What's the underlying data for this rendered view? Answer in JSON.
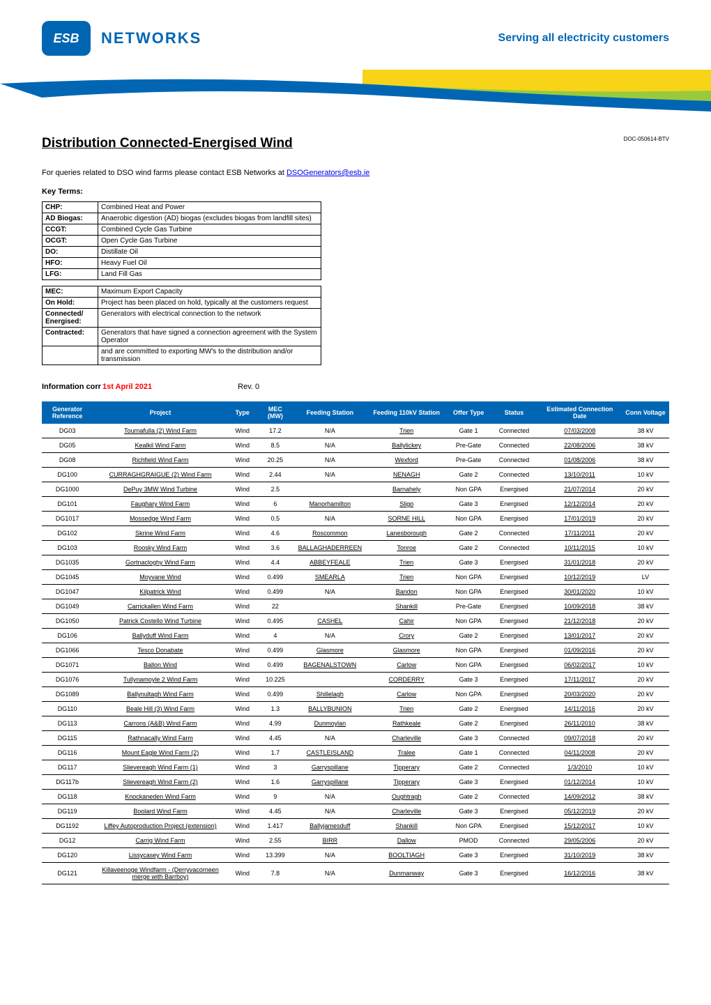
{
  "header": {
    "logo_badge_text": "ESB",
    "logo_text": "NETWORKS",
    "tagline": "Serving all electricity customers"
  },
  "swoosh": {
    "blue_color": "#0066b3",
    "yellow_color": "#f7d417",
    "green_color": "#9aca3c"
  },
  "page_title": "Distribution Connected-Energised Wind",
  "doc_ref": "DOC-050614-BTV",
  "queries_prefix": "For queries related to DSO wind farms please contact ESB Networks at ",
  "queries_email": "DSOGenerators@esb.ie",
  "key_terms_label": "Key Terms:",
  "terms_group1": [
    {
      "key": "CHP:",
      "val": "Combined Heat and Power"
    },
    {
      "key": "AD Biogas:",
      "val": "Anaerobic digestion (AD) biogas (excludes biogas from landfill sites)"
    },
    {
      "key": "CCGT:",
      "val": "Combined Cycle Gas Turbine"
    },
    {
      "key": "OCGT:",
      "val": "Open Cycle Gas Turbine"
    },
    {
      "key": "DO:",
      "val": "Distillate Oil"
    },
    {
      "key": "HFO:",
      "val": "Heavy Fuel Oil"
    },
    {
      "key": "LFG:",
      "val": "Land Fill Gas"
    }
  ],
  "terms_group2": [
    {
      "key": "MEC:",
      "val": "Maximum Export Capacity"
    },
    {
      "key": "On Hold:",
      "val": "Project has been placed on hold, typically at the customers request"
    },
    {
      "key": "Connected/ Energised:",
      "val": "Generators with electrical connection to the network"
    },
    {
      "key": "Contracted:",
      "val": "Generators that have signed a connection agreement with the System Operator"
    },
    {
      "key": "",
      "val": "and are committed to exporting MW's to the distribution and/or transmission"
    }
  ],
  "info": {
    "label": "Information corr",
    "date": "1st April 2021",
    "rev": "Rev. 0"
  },
  "columns": [
    "Generator Reference",
    "Project",
    "Type",
    "MEC (MW)",
    "Feeding Station",
    "Feeding 110kV Station",
    "Offer Type",
    "Status",
    "Estimated Connection Date",
    "Conn Voltage"
  ],
  "col_widths": [
    "70px",
    "185px",
    "40px",
    "50px",
    "100px",
    "110px",
    "60px",
    "65px",
    "115px",
    "65px"
  ],
  "rows": [
    [
      "DG03",
      "Tournafulla (2) Wind Farm",
      "Wind",
      "17.2",
      "N/A",
      "Trien",
      "Gate 1",
      "Connected",
      "07/03/2008",
      "38 kV"
    ],
    [
      "DG05",
      "Kealkil Wind Farm",
      "Wind",
      "8.5",
      "N/A",
      "Ballylickey",
      "Pre-Gate",
      "Connected",
      "22/08/2006",
      "38 kV"
    ],
    [
      "DG08",
      "Richfield Wind Farm",
      "Wind",
      "20.25",
      "N/A",
      "Wexford",
      "Pre-Gate",
      "Connected",
      "01/08/2006",
      "38 kV"
    ],
    [
      "DG100",
      "CURRAGHGRAIGUE (2) Wind Farm",
      "Wind",
      "2.44",
      "N/A",
      "NENAGH",
      "Gate 2",
      "Connected",
      "13/10/2011",
      "10 kV"
    ],
    [
      "DG1000",
      "DePuy 3MW Wind Turbine",
      "Wind",
      "2.5",
      "",
      "Barnahely",
      "Non GPA",
      "Energised",
      "21/07/2014",
      "20 kV"
    ],
    [
      "DG101",
      "Faughary Wind Farm",
      "Wind",
      "6",
      "Manorhamilton",
      "Sligo",
      "Gate 3",
      "Energised",
      "12/12/2014",
      "20 kV"
    ],
    [
      "DG1017",
      "Mossedge Wind Farm",
      "Wind",
      "0.5",
      "N/A",
      "SORNE HILL",
      "Non GPA",
      "Energised",
      "17/01/2019",
      "20 kV"
    ],
    [
      "DG102",
      "Skrine Wind Farm",
      "Wind",
      "4.6",
      "Roscommon",
      "Lanesborough",
      "Gate 2",
      "Connected",
      "17/11/2011",
      "20 kV"
    ],
    [
      "DG103",
      "Roosky Wind Farm",
      "Wind",
      "3.6",
      "BALLAGHADERREEN",
      "Tonroe",
      "Gate 2",
      "Connected",
      "10/11/2015",
      "10 kV"
    ],
    [
      "DG1035",
      "Gortnacloghy Wind Farm",
      "Wind",
      "4.4",
      "ABBEYFEALE",
      "Trien",
      "Gate 3",
      "Energised",
      "31/01/2018",
      "20 kV"
    ],
    [
      "DG1045",
      "Moyvane Wind",
      "Wind",
      "0.499",
      "SMEARLA",
      "Trien",
      "Non GPA",
      "Energised",
      "10/12/2019",
      "LV"
    ],
    [
      "DG1047",
      "Kilpatrick Wind",
      "Wind",
      "0.499",
      "N/A",
      "Bandon",
      "Non GPA",
      "Energised",
      "30/01/2020",
      "10 kV"
    ],
    [
      "DG1049",
      "Carrickallen Wind Farm",
      "Wind",
      "22",
      "",
      "Shankill",
      "Pre-Gate",
      "Energised",
      "10/09/2018",
      "38 kV"
    ],
    [
      "DG1050",
      "Patrick Costello Wind Turbine",
      "Wind",
      "0.495",
      "CASHEL",
      "Cahir",
      "Non GPA",
      "Energised",
      "21/12/2018",
      "20 kV"
    ],
    [
      "DG106",
      "Ballyduff Wind Farm",
      "Wind",
      "4",
      "N/A",
      "Crory",
      "Gate 2",
      "Energised",
      "13/01/2017",
      "20 kV"
    ],
    [
      "DG1066",
      "Tesco Donabate",
      "Wind",
      "0.499",
      "Glasmore",
      "Glasmore",
      "Non GPA",
      "Energised",
      "01/09/2016",
      "20 kV"
    ],
    [
      "DG1071",
      "Ballon Wind",
      "Wind",
      "0.499",
      "BAGENALSTOWN",
      "Carlow",
      "Non GPA",
      "Energised",
      "06/02/2017",
      "10 kV"
    ],
    [
      "DG1076",
      "Tullynamoyle 2 Wind Farm",
      "Wind",
      "10.225",
      "",
      "CORDERRY",
      "Gate 3",
      "Energised",
      "17/11/2017",
      "20 kV"
    ],
    [
      "DG1089",
      "Ballynultagh Wind Farm",
      "Wind",
      "0.499",
      "Shillelagh",
      "Carlow",
      "Non GPA",
      "Energised",
      "20/03/2020",
      "20 kV"
    ],
    [
      "DG110",
      "Beale Hill (3) Wind Farm",
      "Wind",
      "1.3",
      "BALLYBUNION",
      "Trien",
      "Gate 2",
      "Energised",
      "14/11/2016",
      "20 kV"
    ],
    [
      "DG113",
      "Carrons (A&B) Wind Farm",
      "Wind",
      "4.99",
      "Dunmoylan",
      "Rathkeale",
      "Gate 2",
      "Energised",
      "26/11/2010",
      "38 kV"
    ],
    [
      "DG115",
      "Rathnacally Wind Farm",
      "Wind",
      "4.45",
      "N/A",
      "Charleville",
      "Gate 3",
      "Connected",
      "09/07/2018",
      "20 kV"
    ],
    [
      "DG116",
      "Mount Eagle Wind Farm (2)",
      "Wind",
      "1.7",
      "CASTLEISLAND",
      "Tralee",
      "Gate 1",
      "Connected",
      "04/11/2008",
      "20 kV"
    ],
    [
      "DG117",
      "Slievereagh Wind Farm (1)",
      "Wind",
      "3",
      "Garryspillane",
      "Tipperary",
      "Gate 2",
      "Connected",
      "1/3/2010",
      "10 kV"
    ],
    [
      "DG117b",
      "Slievereagh Wind Farm (2)",
      "Wind",
      "1.6",
      "Garryspillane",
      "Tipperary",
      "Gate 3",
      "Energised",
      "01/12/2014",
      "10 kV"
    ],
    [
      "DG118",
      "Knockaneden Wind Farm",
      "Wind",
      "9",
      "N/A",
      "Oughtragh",
      "Gate 2",
      "Connected",
      "14/09/2012",
      "38 kV"
    ],
    [
      "DG119",
      "Boolard Wind Farm",
      "Wind",
      "4.45",
      "N/A",
      "Charleville",
      "Gate 3",
      "Energised",
      "05/12/2019",
      "20 kV"
    ],
    [
      "DG1192",
      "Liffey Autoproduction Project (extension)",
      "Wind",
      "1.417",
      "Ballyjamesduff",
      "Shankill",
      "Non GPA",
      "Energised",
      "15/12/2017",
      "10 kV"
    ],
    [
      "DG12",
      "Carrig Wind Farm",
      "Wind",
      "2.55",
      "BIRR",
      "Dallow",
      "PMOD",
      "Connected",
      "29/05/2006",
      "20 kV"
    ],
    [
      "DG120",
      "Lissycasey Wind Farm",
      "Wind",
      "13.399",
      "N/A",
      "BOOLTIAGH",
      "Gate 3",
      "Energised",
      "31/10/2019",
      "38 kV"
    ],
    [
      "DG121",
      "Killaveenoge Windfarm - (Derryvacorneen merge with Barrboy)",
      "Wind",
      "7.8",
      "N/A",
      "Dunmanway",
      "Gate 3",
      "Energised",
      "16/12/2016",
      "38 kV"
    ]
  ],
  "underlined_cols": [
    1,
    4,
    5,
    8
  ],
  "colors": {
    "header_bg": "#0066b3",
    "header_fg": "#ffffff",
    "brand_blue": "#0066b3",
    "date_red": "#ff0000"
  }
}
